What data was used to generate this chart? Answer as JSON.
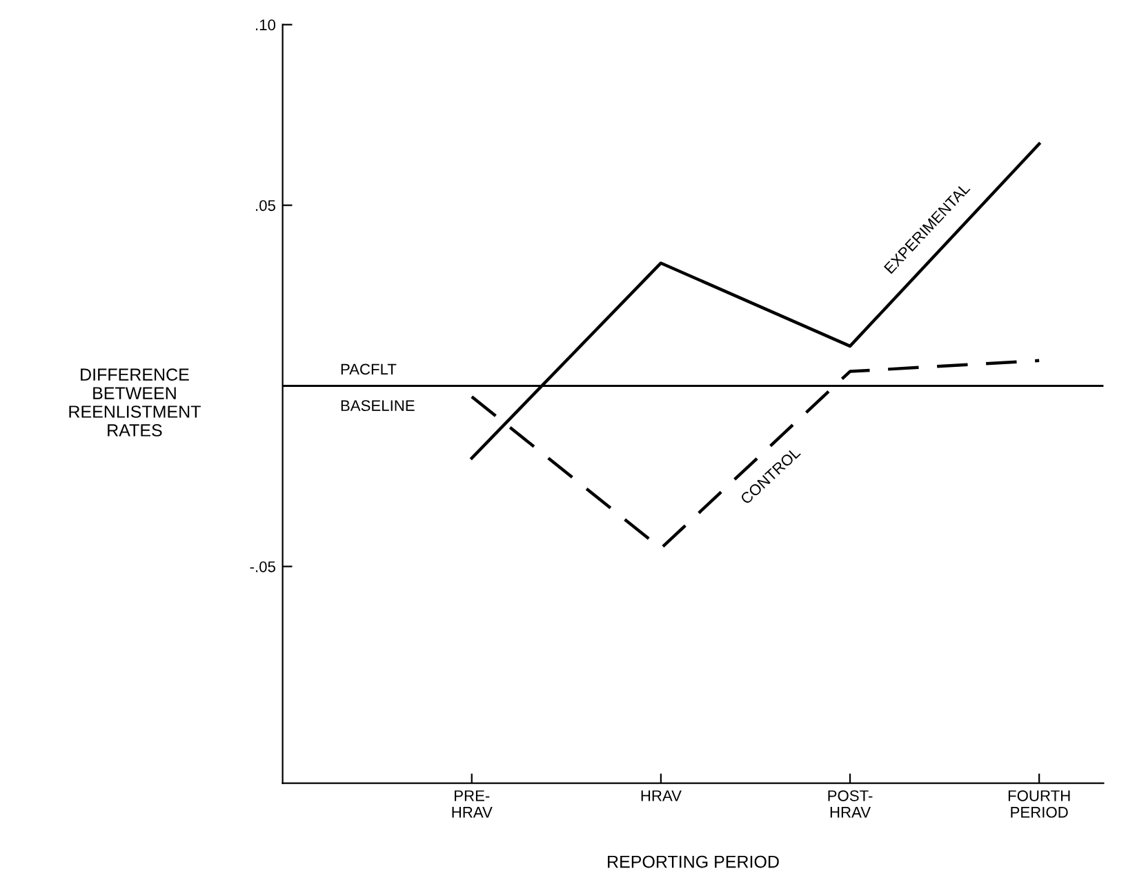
{
  "chart_data": {
    "type": "line",
    "xlabel": "REPORTING PERIOD",
    "ylabel": "DIFFERENCE\nBETWEEN\nREENLISTMENT\nRATES",
    "categories": [
      "PRE-\nHRAV",
      "HRAV",
      "POST-\nHRAV",
      "FOURTH\nPERIOD"
    ],
    "series": [
      {
        "name": "EXPERIMENTAL",
        "color": "#000000",
        "line_style": "solid",
        "values": [
          -0.02,
          0.034,
          0.011,
          0.067
        ]
      },
      {
        "name": "CONTROL",
        "color": "#000000",
        "line_style": "dashed",
        "values": [
          -0.003,
          -0.045,
          0.004,
          0.007
        ]
      }
    ],
    "ylim": [
      -0.11,
      0.1
    ],
    "yticks": [
      {
        "value": 0.1,
        "label": ".10"
      },
      {
        "value": 0.05,
        "label": ".05"
      },
      {
        "value": -0.05,
        "label": "-.05"
      }
    ],
    "ref_lines": [
      {
        "axis": "y",
        "value": 0,
        "label": "PACFLT\nBASELINE",
        "color": "#000000"
      }
    ],
    "grid": false,
    "legend": false,
    "marker": "none"
  }
}
